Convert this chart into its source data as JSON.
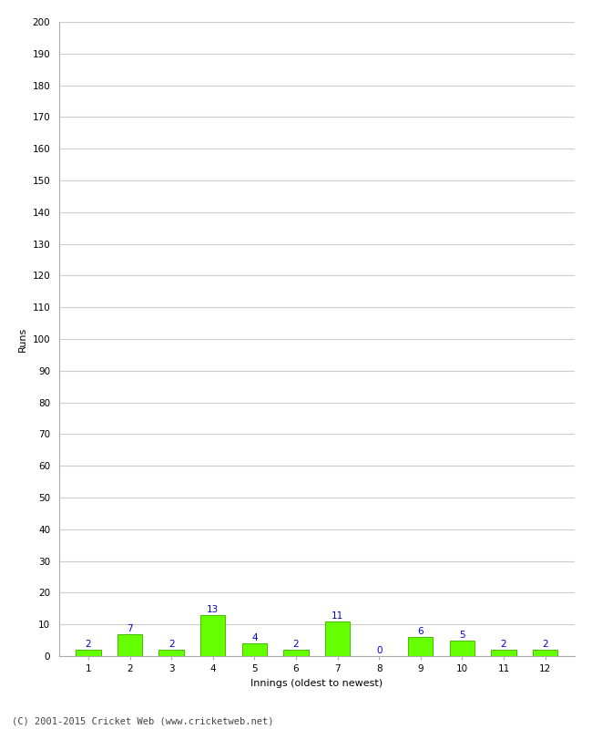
{
  "xlabel": "Innings (oldest to newest)",
  "ylabel": "Runs",
  "categories": [
    "1",
    "2",
    "3",
    "4",
    "5",
    "6",
    "7",
    "8",
    "9",
    "10",
    "11",
    "12"
  ],
  "values": [
    2,
    7,
    2,
    13,
    4,
    2,
    11,
    0,
    6,
    5,
    2,
    2
  ],
  "bar_color": "#66ff00",
  "bar_edge_color": "#44bb00",
  "label_color": "#0000cc",
  "ylim": [
    0,
    200
  ],
  "yticks": [
    0,
    10,
    20,
    30,
    40,
    50,
    60,
    70,
    80,
    90,
    100,
    110,
    120,
    130,
    140,
    150,
    160,
    170,
    180,
    190,
    200
  ],
  "background_color": "#ffffff",
  "grid_color": "#cccccc",
  "footer_text": "(C) 2001-2015 Cricket Web (www.cricketweb.net)",
  "label_fontsize": 7.5,
  "axis_label_fontsize": 8,
  "tick_fontsize": 7.5,
  "footer_fontsize": 7.5
}
